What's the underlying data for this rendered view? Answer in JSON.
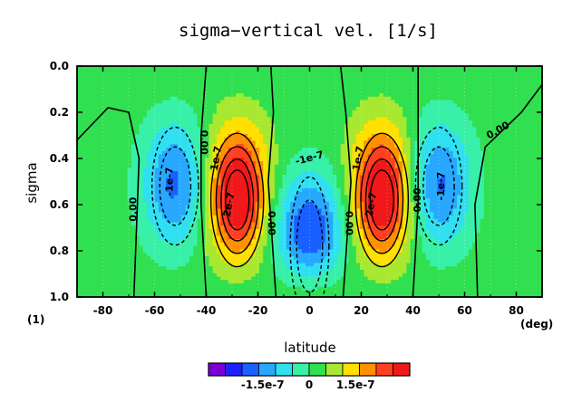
{
  "chart_data": {
    "type": "heatmap",
    "subtype": "filled contour",
    "title": "sigma−vertical vel. [1/s]",
    "xlabel": "latitude",
    "ylabel": "sigma",
    "x_unit": "(deg)",
    "y_unit": "(1)",
    "xlim": [
      -90,
      90
    ],
    "ylim": [
      1.0,
      0.0
    ],
    "x_ticks": [
      "-80",
      "-60",
      "-40",
      "-20",
      "0",
      "20",
      "40",
      "60",
      "80"
    ],
    "y_ticks": [
      "0.0",
      "0.2",
      "0.4",
      "0.6",
      "0.8",
      "1.0"
    ],
    "contour_labels": [
      "0.00",
      "0.00",
      "0.00",
      "0.00",
      "0.00",
      "0.00",
      "-1e-7",
      "-1e-7",
      "-1e-7",
      "1e-7",
      "1e-7",
      "2e-7",
      "2e-7"
    ],
    "colorbar": {
      "levels": [
        -2.75e-07,
        -2.25e-07,
        -1.75e-07,
        -1.25e-07,
        -7.5e-08,
        -2.5e-08,
        2.5e-08,
        7.5e-08,
        1.25e-07,
        1.75e-07,
        2.25e-07,
        2.75e-07
      ],
      "tick_labels": [
        "-1.5e-7",
        "0",
        "1.5e-7"
      ],
      "colors": [
        "#7a00d6",
        "#2020ff",
        "#1860ff",
        "#28a8ff",
        "#30e0f0",
        "#38f0a8",
        "#30e050",
        "#a8e830",
        "#ffe000",
        "#ff9000",
        "#ff4020",
        "#f01818"
      ]
    },
    "field": {
      "description_of_features": [
        {
          "feature": "equatorial minimum",
          "lat": 0,
          "sigma": 0.78,
          "value": -2.3e-07
        },
        {
          "feature": "subtropical maximum",
          "lat": -28,
          "sigma": 0.58,
          "value": 2.5e-07
        },
        {
          "feature": "subtropical maximum",
          "lat": 28,
          "sigma": 0.58,
          "value": 2.5e-07
        },
        {
          "feature": "midlatitude minimum",
          "lat": -52,
          "sigma": 0.52,
          "value": -1.5e-07
        },
        {
          "feature": "midlatitude minimum",
          "lat": 50,
          "sigma": 0.52,
          "value": -1.5e-07
        }
      ]
    }
  }
}
